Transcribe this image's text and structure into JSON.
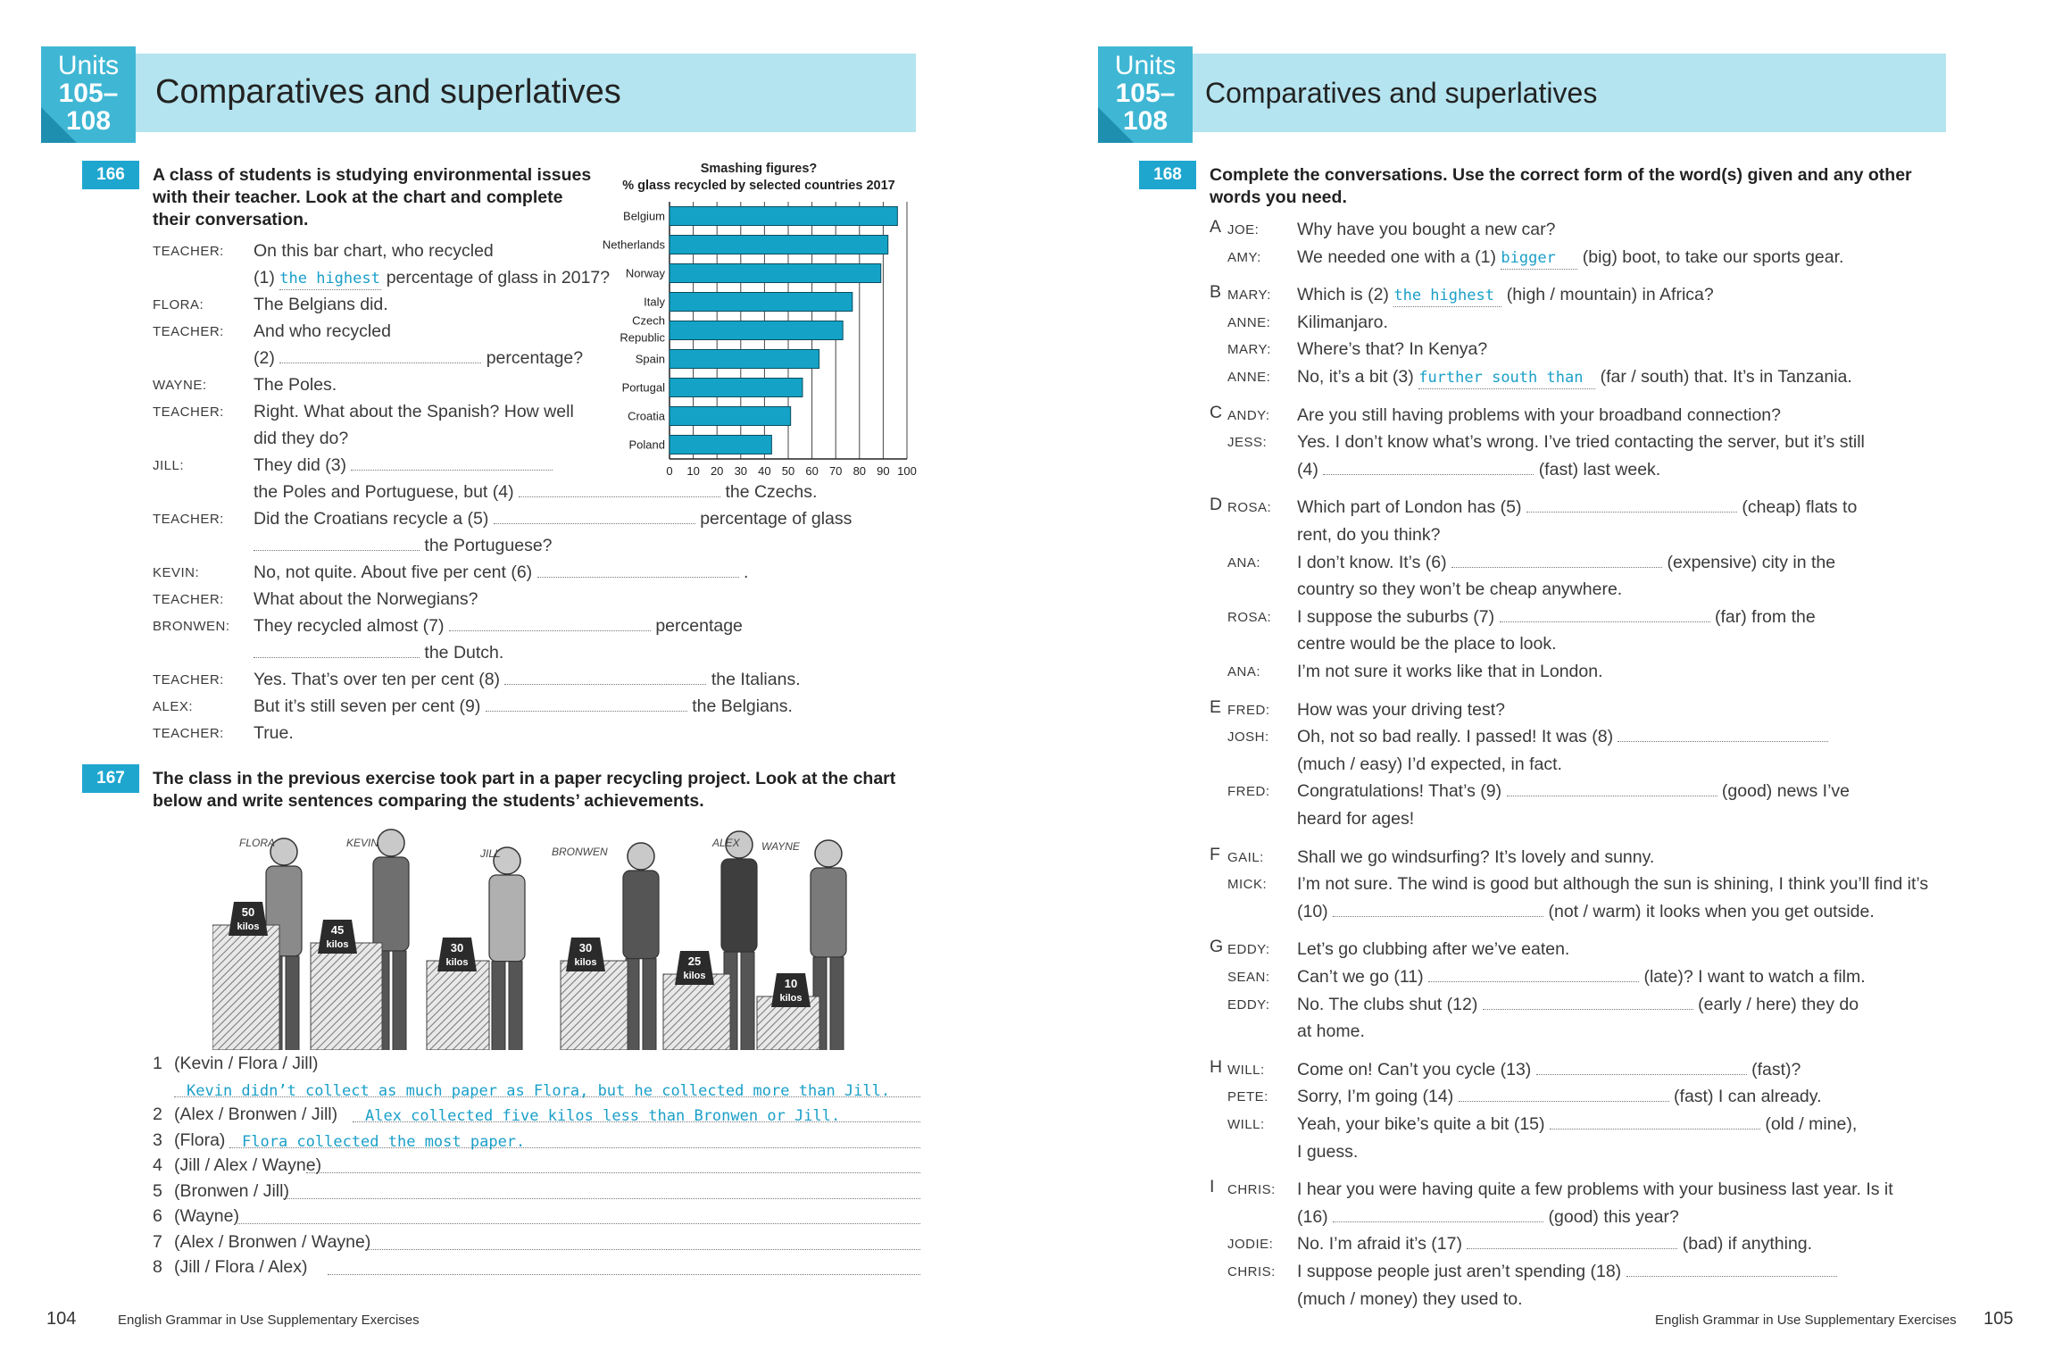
{
  "left": {
    "unit": {
      "l1": "Units",
      "l2": "105–",
      "l3": "108"
    },
    "title": "Comparatives and superlatives",
    "ex166": {
      "badge": "166",
      "instr": "A class of students is studying environmental issues with their teacher.  Look at the chart and complete their conversation.",
      "instr_l1": "A class of students is studying environmental issues",
      "instr_l2": "with their teacher.  Look at the chart and complete",
      "instr_l3": "their conversation.",
      "lines": [
        {
          "spk": "TEACHER:",
          "t1": "On this bar chart, who recycled"
        },
        {
          "spk": "",
          "a": "(1)",
          "ans": "the highest",
          "b": "percentage of glass in 2017?"
        },
        {
          "spk": "FLORA:",
          "t1": "The Belgians did."
        },
        {
          "spk": "TEACHER:",
          "t1": "And who recycled"
        },
        {
          "spk": "",
          "a": "(2)",
          "b": "percentage?"
        },
        {
          "spk": "WAYNE:",
          "t1": "The Poles."
        },
        {
          "spk": "TEACHER:",
          "t1": "Right.  What about the Spanish?  How well"
        },
        {
          "spk": "",
          "t1": "did they do?"
        },
        {
          "spk": "JILL:",
          "a": "They did (3)"
        },
        {
          "spk": "",
          "a": "the Poles and Portuguese, but (4)",
          "b": "the Czechs."
        },
        {
          "spk": "TEACHER:",
          "a": "Did the Croatians recycle a (5)",
          "b": "percentage of glass"
        },
        {
          "spk": "",
          "b": "the Portuguese?"
        },
        {
          "spk": "KEVIN:",
          "a": "No, not quite.  About five per cent (6)",
          "b": "."
        },
        {
          "spk": "TEACHER:",
          "t1": "What about the Norwegians?"
        },
        {
          "spk": "BRONWEN:",
          "a": "They recycled almost (7)",
          "b": "percentage"
        },
        {
          "spk": "",
          "b": "the Dutch."
        },
        {
          "spk": "TEACHER:",
          "a": "Yes. That’s over ten per cent (8)",
          "b": "the Italians."
        },
        {
          "spk": "ALEX:",
          "a": "But it’s still seven per cent (9)",
          "b": "the Belgians."
        },
        {
          "spk": "TEACHER:",
          "t1": "True."
        }
      ]
    },
    "ex167": {
      "badge": "167",
      "instr_l1": "The class in the previous exercise took part in a paper recycling project.  Look at the chart",
      "instr_l2": "below and write sentences comparing the students’ achievements.",
      "names": [
        "FLORA",
        "KEVIN",
        "JILL",
        "BRONWEN",
        "ALEX",
        "WAYNE"
      ],
      "weights": [
        {
          "n": "50",
          "u": "kilos"
        },
        {
          "n": "45",
          "u": "kilos"
        },
        {
          "n": "30",
          "u": "kilos"
        },
        {
          "n": "30",
          "u": "kilos"
        },
        {
          "n": "25",
          "u": "kilos"
        },
        {
          "n": "10",
          "u": "kilos"
        }
      ],
      "items": [
        {
          "num": "1",
          "cue": "(Kevin / Flora / Jill)"
        },
        {
          "num": "",
          "cue": "",
          "ans": "Kevin didn’t collect as much paper as Flora, but he collected more than Jill."
        },
        {
          "num": "2",
          "cue": "(Alex / Bronwen / Jill)",
          "ans": "Alex collected five kilos less than Bronwen or Jill."
        },
        {
          "num": "3",
          "cue": "(Flora)",
          "ans": "Flora collected the most paper."
        },
        {
          "num": "4",
          "cue": "(Jill / Alex / Wayne)"
        },
        {
          "num": "5",
          "cue": "(Bronwen / Jill)"
        },
        {
          "num": "6",
          "cue": "(Wayne)"
        },
        {
          "num": "7",
          "cue": "(Alex / Bronwen / Wayne)"
        },
        {
          "num": "8",
          "cue": "(Jill / Flora / Alex)"
        }
      ]
    },
    "page_num": "104",
    "footer": "English Grammar in Use Supplementary Exercises"
  },
  "chart_data": {
    "type": "bar",
    "title": "Smashing figures?",
    "subtitle": "% glass recycled by selected countries 2017",
    "categories": [
      "Belgium",
      "Netherlands",
      "Norway",
      "Italy",
      "Czech Republic",
      "Spain",
      "Portugal",
      "Croatia",
      "Poland"
    ],
    "values": [
      96,
      92,
      89,
      77,
      73,
      63,
      56,
      51,
      43
    ],
    "xlim": [
      0,
      100
    ],
    "ticks": [
      "0",
      "10",
      "20",
      "30",
      "40",
      "50",
      "60",
      "70",
      "80",
      "90",
      "100"
    ],
    "grid": true,
    "bar_color": "#14a3c7"
  },
  "right": {
    "unit": {
      "l1": "Units",
      "l2": "105–",
      "l3": "108"
    },
    "title": "Comparatives and superlatives",
    "ex168": {
      "badge": "168",
      "instr_l1": "Complete the conversations.  Use the correct form of the word(s) given and any other",
      "instr_l2": "words you need.",
      "groups": [
        {
          "letter": "A",
          "lines": [
            {
              "spk": "JOE:",
              "t": "Why have you bought a new car?"
            },
            {
              "spk": "AMY:",
              "a": "We needed one with a (1)",
              "ans": "bigger",
              "b": "(big) boot, to take our sports gear."
            }
          ]
        },
        {
          "letter": "B",
          "lines": [
            {
              "spk": "MARY:",
              "a": "Which is (2)",
              "ans": "the highest",
              "b": "(high / mountain) in Africa?"
            },
            {
              "spk": "ANNE:",
              "t": "Kilimanjaro."
            },
            {
              "spk": "MARY:",
              "t": "Where’s that?  In Kenya?"
            },
            {
              "spk": "ANNE:",
              "a": "No, it’s a bit (3)",
              "ans": "further south than",
              "b": "(far / south) that.  It’s in Tanzania."
            }
          ]
        },
        {
          "letter": "C",
          "lines": [
            {
              "spk": "ANDY:",
              "t": "Are you still having problems with your broadband connection?"
            },
            {
              "spk": "JESS:",
              "t": "Yes.  I don’t know what’s wrong.  I’ve tried contacting the server, but it’s still"
            },
            {
              "spk": "",
              "a": "(4)",
              "b": "(fast) last week."
            }
          ]
        },
        {
          "letter": "D",
          "lines": [
            {
              "spk": "ROSA:",
              "a": "Which part of London has (5)",
              "b": "(cheap) flats to"
            },
            {
              "spk": "",
              "t": "rent, do you think?"
            },
            {
              "spk": "ANA:",
              "a": "I don’t know.  It’s (6)",
              "b": "(expensive) city in the"
            },
            {
              "spk": "",
              "t": "country so they won’t be cheap anywhere."
            },
            {
              "spk": "ROSA:",
              "a": "I suppose the suburbs (7)",
              "b": "(far) from the"
            },
            {
              "spk": "",
              "t": "centre would be the place to look."
            },
            {
              "spk": "ANA:",
              "t": "I’m not sure it works like that in London."
            }
          ]
        },
        {
          "letter": "E",
          "lines": [
            {
              "spk": "FRED:",
              "t": "How was your driving test?"
            },
            {
              "spk": "JOSH:",
              "a": "Oh, not so bad really.  I passed!  It was (8)",
              "b": ""
            },
            {
              "spk": "",
              "t": "(much / easy) I’d expected, in fact."
            },
            {
              "spk": "FRED:",
              "a": "Congratulations!  That’s (9)",
              "b": "(good) news I’ve"
            },
            {
              "spk": "",
              "t": "heard for ages!"
            }
          ]
        },
        {
          "letter": "F",
          "lines": [
            {
              "spk": "GAIL:",
              "t": "Shall we go windsurfing?  It’s lovely and sunny."
            },
            {
              "spk": "MICK:",
              "t": "I’m not sure.  The wind is good but although the sun is shining, I think you’ll find it’s"
            },
            {
              "spk": "",
              "a": "(10)",
              "b": "(not / warm) it looks when you get outside."
            }
          ]
        },
        {
          "letter": "G",
          "lines": [
            {
              "spk": "EDDY:",
              "t": "Let’s go clubbing after we’ve eaten."
            },
            {
              "spk": "SEAN:",
              "a": "Can’t we go (11)",
              "b": "(late)?  I want to watch a film."
            },
            {
              "spk": "EDDY:",
              "a": "No.  The clubs shut (12)",
              "b": "(early / here) they do"
            },
            {
              "spk": "",
              "t": "at home."
            }
          ]
        },
        {
          "letter": "H",
          "lines": [
            {
              "spk": "WILL:",
              "a": "Come on!  Can’t you cycle (13)",
              "b": "(fast)?"
            },
            {
              "spk": "PETE:",
              "a": "Sorry, I’m going (14)",
              "b": "(fast) I can already."
            },
            {
              "spk": "WILL:",
              "a": "Yeah, your bike’s quite a bit (15)",
              "b": "(old / mine),"
            },
            {
              "spk": "",
              "t": "I guess."
            }
          ]
        },
        {
          "letter": "I",
          "lines": [
            {
              "spk": "CHRIS:",
              "t": "I hear you were having quite a few problems with your business last year.  Is it"
            },
            {
              "spk": "",
              "a": "(16)",
              "b": "(good) this year?"
            },
            {
              "spk": "JODIE:",
              "a": "No.  I’m afraid it’s (17)",
              "b": "(bad) if anything."
            },
            {
              "spk": "CHRIS:",
              "a": "I suppose people just aren’t spending (18)",
              "b": ""
            },
            {
              "spk": "",
              "t": "(much / money) they used to."
            }
          ]
        }
      ]
    },
    "page_num": "105",
    "footer": "English Grammar in Use Supplementary Exercises"
  }
}
